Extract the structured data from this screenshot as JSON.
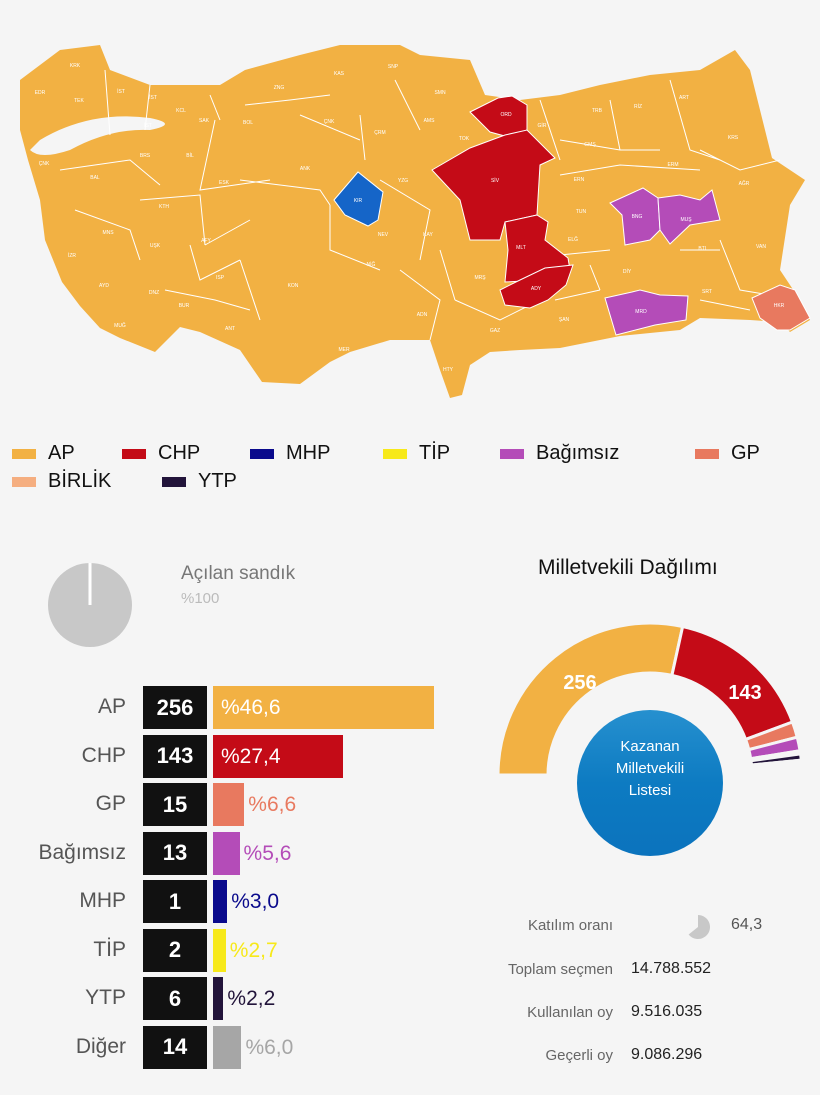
{
  "legend": [
    {
      "label": "AP",
      "color": "#f2b143"
    },
    {
      "label": "CHP",
      "color": "#c40b17"
    },
    {
      "label": "MHP",
      "color": "#0a0a8c"
    },
    {
      "label": "TİP",
      "color": "#f7e91a"
    },
    {
      "label": "Bağımsız",
      "color": "#b44cb8"
    },
    {
      "label": "GP",
      "color": "#e8795f"
    },
    {
      "label": "BİRLİK",
      "color": "#f5ae80"
    },
    {
      "label": "YTP",
      "color": "#22143a"
    }
  ],
  "map": {
    "base_color": "#f2b143",
    "highlight_colors": {
      "KIR": "#1565c8",
      "ORD": "#c40b17",
      "SİV": "#c40b17",
      "MLT": "#c40b17",
      "ADY": "#c40b17",
      "BNG": "#b44cb8",
      "MUŞ": "#b44cb8",
      "MRD": "#b44cb8",
      "HKR": "#e8795f"
    },
    "provinces": [
      "KRK",
      "EDR",
      "TEK",
      "İST",
      "İST",
      "KCL",
      "İST",
      "SAK",
      "BOL",
      "ZNG",
      "KAS",
      "SNP",
      "ÇNK",
      "ÇRM",
      "ÇNK",
      "BRS",
      "BİL",
      "BAL",
      "ESK",
      "ANK",
      "KIR",
      "YZG",
      "KTH",
      "MNS",
      "UŞK",
      "AFY",
      "NEV",
      "İZR",
      "NİĞ",
      "AYD",
      "DNZ",
      "ISP",
      "KON",
      "BUR",
      "ANT",
      "MUĞ",
      "MER",
      "SMN",
      "ORD",
      "AMS",
      "TOK",
      "GİR",
      "TRB",
      "RİZ",
      "ART",
      "GMŞ",
      "KRS",
      "SİV",
      "ERN",
      "ERM",
      "AĞR",
      "TUN",
      "BNG",
      "MUŞ",
      "KAY",
      "ELĞ",
      "MLT",
      "VAN",
      "BTL",
      "DİY",
      "MRŞ",
      "ADY",
      "SRT",
      "HKR",
      "MRD",
      "ADN",
      "ŞAN",
      "GAZ",
      "HTY"
    ]
  },
  "ballot": {
    "label": "Açılan sandık",
    "value": "%100",
    "fraction": 1.0
  },
  "chart_data": [
    {
      "type": "bar",
      "categories": [
        "AP",
        "CHP",
        "GP",
        "Bağımsız",
        "MHP",
        "TİP",
        "YTP",
        "Diğer"
      ],
      "seats": [
        "256",
        "143",
        "15",
        "13",
        "1",
        "2",
        "6",
        "14"
      ],
      "values": [
        46.6,
        27.4,
        6.6,
        5.6,
        3.0,
        2.7,
        2.2,
        6.0
      ],
      "value_labels": [
        "%46,6",
        "%27,4",
        "%6,6",
        "%5,6",
        "%3,0",
        "%2,7",
        "%2,2",
        "%6,0"
      ],
      "colors": [
        "#f2b143",
        "#c40b17",
        "#e8795f",
        "#b44cb8",
        "#0a0a8c",
        "#f7e91a",
        "#22143a",
        "#a6a6a6"
      ]
    },
    {
      "type": "pie",
      "title": "Milletvekili Dağılımı",
      "center_label": [
        "Kazanan",
        "Milletvekili",
        "Listesi"
      ],
      "categories": [
        "AP",
        "CHP",
        "GP",
        "Bağımsız",
        "MHP",
        "TİP",
        "YTP",
        "Diğer"
      ],
      "values": [
        256,
        143,
        15,
        13,
        1,
        2,
        6,
        14
      ],
      "visible_labels": [
        "256",
        "143"
      ],
      "colors": [
        "#f2b143",
        "#c40b17",
        "#e8795f",
        "#b44cb8",
        "#0a0a8c",
        "#f7e91a",
        "#22143a",
        "#f5f5f5"
      ]
    }
  ],
  "stats": {
    "turnout_label": "Katılım oranı",
    "turnout_value": "64,3",
    "turnout_fraction": 0.643,
    "voters_label": "Toplam seçmen",
    "voters_value": "14.788.552",
    "votes_cast_label": "Kullanılan oy",
    "votes_cast_value": "9.516.035",
    "valid_votes_label": "Geçerli oy",
    "valid_votes_value": "9.086.296"
  }
}
